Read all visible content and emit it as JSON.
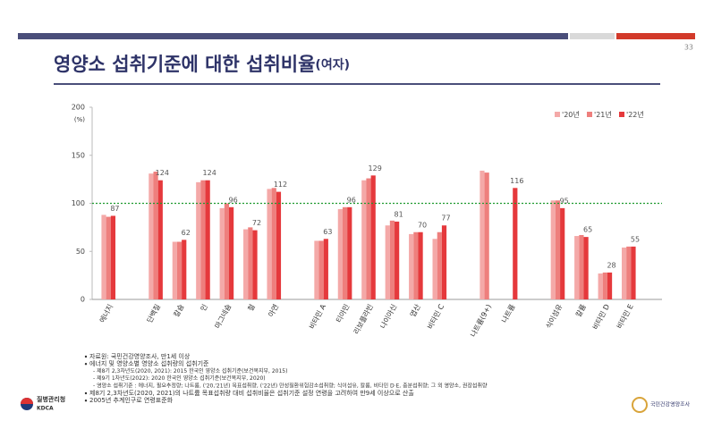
{
  "page_number": "33",
  "chart_data": {
    "type": "bar",
    "title": "영양소 섭취기준에 대한 섭취비율",
    "title_suffix": "(여자)",
    "y_unit": "(%)",
    "categories": [
      "에너지",
      null,
      "단백질",
      "칼슘",
      "인",
      "마그네슘",
      "철",
      "아연",
      null,
      "비타민 A",
      "티아민",
      "리보플라빈",
      "나이아신",
      "엽산",
      "비타민 C",
      null,
      "나트륨(9+)",
      "나트륨",
      null,
      "식이섬유",
      "칼륨",
      "비타민 D",
      "비타민 E"
    ],
    "series": [
      {
        "name": "'20년",
        "color": "#f4a9a8",
        "labels": false,
        "values": [
          88,
          null,
          131,
          60,
          122,
          95,
          73,
          115,
          null,
          61,
          94,
          124,
          77,
          68,
          63,
          null,
          134,
          null,
          null,
          103,
          66,
          27,
          54
        ]
      },
      {
        "name": "'21년",
        "color": "#ee7f7d",
        "labels": false,
        "values": [
          86,
          null,
          133,
          60,
          124,
          100,
          75,
          116,
          null,
          61,
          96,
          126,
          82,
          70,
          70,
          null,
          132,
          null,
          null,
          103,
          67,
          28,
          55
        ]
      },
      {
        "name": "'22년",
        "color": "#e5393c",
        "labels": true,
        "values": [
          87,
          null,
          124,
          62,
          124,
          96,
          72,
          112,
          null,
          63,
          96,
          129,
          81,
          70,
          77,
          null,
          null,
          116,
          null,
          95,
          65,
          28,
          55
        ]
      }
    ],
    "ylim": [
      0,
      200
    ],
    "yticks": [
      0,
      50,
      100,
      150,
      200
    ],
    "reference_line": {
      "value": 100,
      "color": "#1f9a2f"
    },
    "legend": "top-right"
  },
  "footnotes": [
    {
      "level": 1,
      "text": "자료원: 국민건강영양조사, 만1세 이상"
    },
    {
      "level": 1,
      "text": "에너지 및 영양소별 영양소 섭취량의 섭취기준"
    },
    {
      "level": 2,
      "text": "- 제8기 2,3차년도(2020, 2021): 2015 한국인 영양소 섭취기준(보건복지부, 2015)"
    },
    {
      "level": 2,
      "text": "- 제9기 1차년도(2022): 2020 한국인 영양소 섭취기준(보건복지부, 2020)"
    },
    {
      "level": 2,
      "text": "- 영양소 섭취기준 : 에너지, 필요추정량; 나트륨, ('20,'21년) 목표섭취량, ('22년) 만성질환위험감소섭취량; 식이섬유, 칼륨, 비타민 D·E, 충분섭취량; 그 외 영양소, 권장섭취량"
    },
    {
      "level": 1,
      "text": "제8기 2,3차년도(2020, 2021)의 나트륨 목표섭취량 대비 섭취비율은 섭취기준 설정 연령을 고려하여 만9세 이상으로 산출"
    },
    {
      "level": 1,
      "text": "2005년 추계인구로 연령표준화"
    }
  ],
  "logo_left": {
    "name": "질병관리청",
    "abbr": "KDCA"
  },
  "logo_right": "국민건강영양조사"
}
